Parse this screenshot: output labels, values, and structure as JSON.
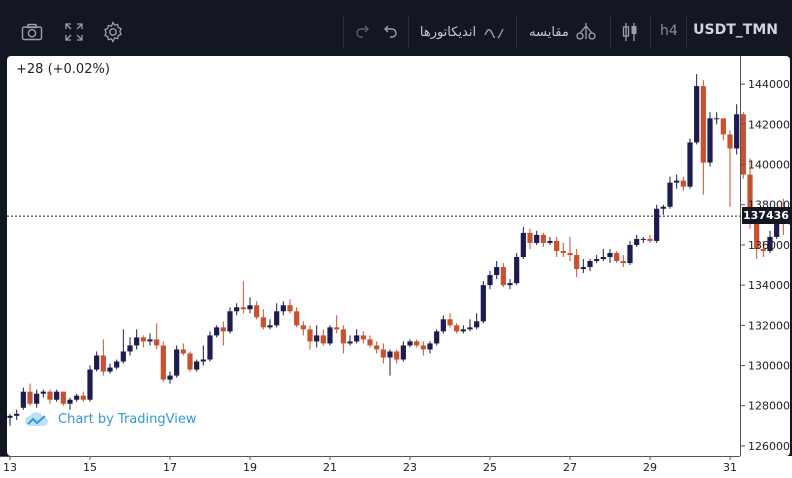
{
  "toolbar": {
    "symbol": "USDT_TMN",
    "interval": "h4",
    "compare_label": "مقایسه",
    "indicators_label": "اندیکاتورها",
    "icons": [
      "camera-icon",
      "fullscreen-icon",
      "gear-icon",
      "redo-icon",
      "undo-icon",
      "indicator-wave-icon",
      "compare-icon",
      "candles-icon"
    ]
  },
  "chart": {
    "change_text": "+28 (+0.02%)",
    "last_price_label": "137436",
    "watermark": "Chart by TradingView",
    "colors": {
      "up": "#1c1c4e",
      "down": "#c9522e",
      "background": "#ffffff",
      "frame": "#131722",
      "watermark": "#2e9bd6"
    }
  },
  "chart_data": {
    "type": "candlestick",
    "title": "USDT_TMN h4",
    "x_tick_labels": [
      "13",
      "15",
      "17",
      "19",
      "21",
      "23",
      "25",
      "27",
      "29",
      "31"
    ],
    "y_tick_labels": [
      "126000",
      "128000",
      "130000",
      "132000",
      "134000",
      "136000",
      "138000",
      "140000",
      "142000",
      "144000"
    ],
    "ylim": [
      125500,
      145400
    ],
    "last_price": 137436,
    "x_range_days": [
      13,
      31
    ],
    "candles": [
      [
        127400,
        127500,
        127000,
        127600
      ],
      [
        127500,
        127600,
        127300,
        127800
      ],
      [
        127900,
        128700,
        127800,
        128900
      ],
      [
        128700,
        128100,
        128000,
        129100
      ],
      [
        128100,
        128600,
        127900,
        128800
      ],
      [
        128600,
        128700,
        128400,
        128800
      ],
      [
        128700,
        128300,
        128100,
        128800
      ],
      [
        128300,
        128700,
        128200,
        128800
      ],
      [
        128700,
        128100,
        128000,
        128700
      ],
      [
        128100,
        128300,
        127800,
        128400
      ],
      [
        128300,
        128500,
        128200,
        128600
      ],
      [
        128500,
        128300,
        128200,
        128700
      ],
      [
        128300,
        129800,
        128200,
        130000
      ],
      [
        129800,
        130500,
        129700,
        130700
      ],
      [
        130500,
        129700,
        129500,
        131300
      ],
      [
        129700,
        129900,
        129600,
        130100
      ],
      [
        129900,
        130200,
        129800,
        130300
      ],
      [
        130200,
        130700,
        130100,
        131800
      ],
      [
        130700,
        131000,
        130500,
        131400
      ],
      [
        131000,
        131400,
        130800,
        131800
      ],
      [
        131400,
        131200,
        130900,
        131500
      ],
      [
        131200,
        131300,
        131000,
        131600
      ],
      [
        131300,
        131000,
        130800,
        132100
      ],
      [
        131000,
        129300,
        129200,
        131200
      ],
      [
        129300,
        129500,
        129100,
        129700
      ],
      [
        129500,
        130800,
        129400,
        131000
      ],
      [
        130800,
        130600,
        130500,
        131100
      ],
      [
        130600,
        129800,
        129700,
        130700
      ],
      [
        129800,
        130200,
        129700,
        130300
      ],
      [
        130200,
        130300,
        130000,
        131000
      ],
      [
        130300,
        131500,
        130200,
        131700
      ],
      [
        131500,
        131900,
        131400,
        132000
      ],
      [
        131900,
        131700,
        131000,
        132200
      ],
      [
        131700,
        132700,
        131600,
        132900
      ],
      [
        132700,
        132900,
        132500,
        133100
      ],
      [
        132900,
        132800,
        132600,
        134200
      ],
      [
        132800,
        133000,
        132600,
        133400
      ],
      [
        133000,
        132400,
        132300,
        133200
      ],
      [
        132400,
        131900,
        131800,
        132800
      ],
      [
        131900,
        132000,
        131800,
        132300
      ],
      [
        132000,
        132700,
        131900,
        133100
      ],
      [
        132700,
        133000,
        132500,
        133200
      ],
      [
        133000,
        132700,
        132600,
        133300
      ],
      [
        132700,
        132000,
        131900,
        132900
      ],
      [
        132000,
        131800,
        131500,
        132200
      ],
      [
        131800,
        131200,
        130800,
        132000
      ],
      [
        131200,
        131500,
        130900,
        132000
      ],
      [
        131500,
        131100,
        131000,
        131800
      ],
      [
        131100,
        131900,
        131000,
        132000
      ],
      [
        131900,
        131800,
        131600,
        132500
      ],
      [
        131800,
        131100,
        130600,
        132000
      ],
      [
        131100,
        131200,
        131000,
        131500
      ],
      [
        131200,
        131500,
        131100,
        131800
      ],
      [
        131500,
        131300,
        131100,
        131700
      ],
      [
        131300,
        131000,
        130900,
        131500
      ],
      [
        131000,
        130800,
        130600,
        131200
      ],
      [
        130800,
        130400,
        130100,
        131100
      ],
      [
        130400,
        130700,
        129500,
        130800
      ],
      [
        130700,
        130300,
        130100,
        130800
      ],
      [
        130300,
        131000,
        130200,
        131200
      ],
      [
        131000,
        131200,
        130900,
        131300
      ],
      [
        131200,
        131000,
        130900,
        131300
      ],
      [
        131000,
        130800,
        130500,
        131200
      ],
      [
        130800,
        131100,
        130600,
        131200
      ],
      [
        131100,
        131700,
        131000,
        131800
      ],
      [
        131700,
        132300,
        131600,
        132500
      ],
      [
        132300,
        132000,
        131900,
        132600
      ],
      [
        132000,
        131700,
        131600,
        132100
      ],
      [
        131700,
        131800,
        131600,
        132000
      ],
      [
        131800,
        131900,
        131700,
        132300
      ],
      [
        131900,
        132200,
        131800,
        132600
      ],
      [
        132200,
        134000,
        132100,
        134200
      ],
      [
        134000,
        134500,
        133800,
        134700
      ],
      [
        134500,
        134900,
        134300,
        135200
      ],
      [
        134900,
        134000,
        133900,
        135100
      ],
      [
        134000,
        134100,
        133800,
        134300
      ],
      [
        134100,
        135400,
        134000,
        135600
      ],
      [
        135400,
        136600,
        135300,
        136900
      ],
      [
        136600,
        136100,
        135800,
        136800
      ],
      [
        136100,
        136500,
        136000,
        136700
      ],
      [
        136500,
        136100,
        135900,
        136600
      ],
      [
        136100,
        136200,
        136000,
        136400
      ],
      [
        136200,
        135700,
        135400,
        136400
      ],
      [
        135700,
        135600,
        135400,
        136100
      ],
      [
        135600,
        135500,
        135200,
        136400
      ],
      [
        135500,
        134800,
        134400,
        135800
      ],
      [
        134800,
        134900,
        134600,
        135300
      ],
      [
        134900,
        135200,
        134700,
        135300
      ],
      [
        135200,
        135300,
        135100,
        135500
      ],
      [
        135300,
        135400,
        135200,
        135800
      ],
      [
        135400,
        135600,
        135100,
        135800
      ],
      [
        135600,
        135200,
        135100,
        135700
      ],
      [
        135200,
        135100,
        134900,
        135500
      ],
      [
        135100,
        136000,
        135000,
        136200
      ],
      [
        136000,
        136300,
        135900,
        136500
      ],
      [
        136300,
        136300,
        136100,
        136400
      ],
      [
        136300,
        136200,
        136100,
        136500
      ],
      [
        136200,
        137800,
        136100,
        138000
      ],
      [
        137800,
        137900,
        137500,
        138000
      ],
      [
        137900,
        139100,
        137800,
        139400
      ],
      [
        139100,
        139200,
        138800,
        139500
      ],
      [
        139200,
        138900,
        138700,
        139400
      ],
      [
        138900,
        141100,
        138800,
        141300
      ],
      [
        141100,
        143900,
        141000,
        144500
      ],
      [
        143900,
        140100,
        138500,
        144200
      ],
      [
        140100,
        142300,
        139900,
        142600
      ],
      [
        142300,
        142300,
        142000,
        142600
      ],
      [
        142300,
        141500,
        141200,
        142200
      ],
      [
        141500,
        140800,
        137900,
        141700
      ],
      [
        140800,
        142500,
        140500,
        143000
      ],
      [
        142500,
        139500,
        139300,
        142600
      ],
      [
        139500,
        137100,
        136800,
        140300
      ],
      [
        137100,
        135800,
        135300,
        137400
      ],
      [
        135800,
        135700,
        135400,
        136200
      ],
      [
        135700,
        136400,
        135600,
        136700
      ],
      [
        136400,
        137400,
        136300,
        137600
      ],
      [
        137400,
        137100,
        136500,
        138300
      ],
      [
        137100,
        137436,
        137000,
        137500
      ]
    ]
  }
}
